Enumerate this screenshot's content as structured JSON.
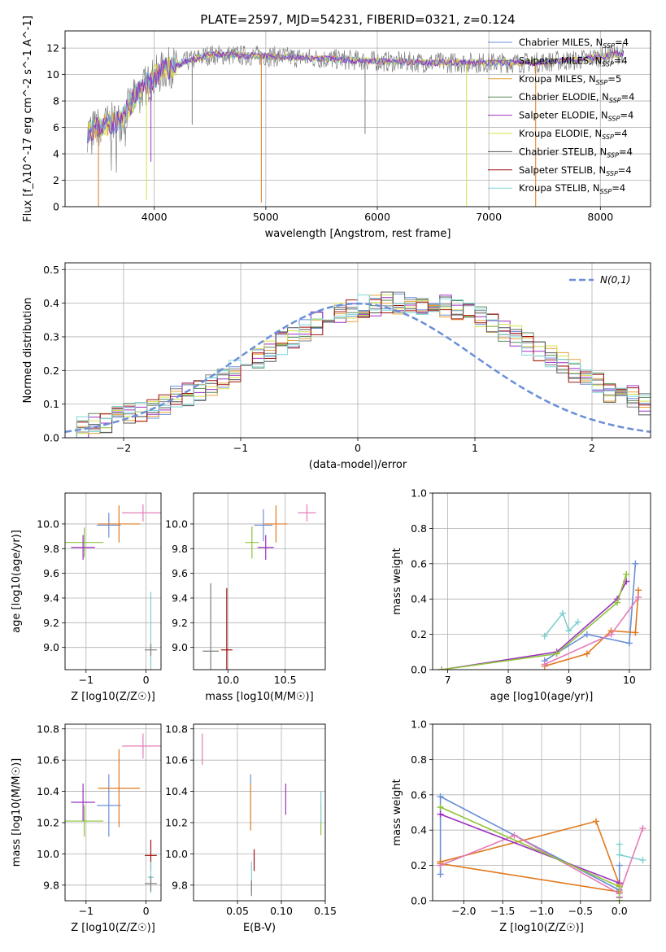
{
  "figure_title": "PLATE=2597, MJD=54231, FIBERID=0321, z=0.124",
  "colors": {
    "Chabrier MILES": "#6a8fd8",
    "Salpeter MILES": "#7f7f7f",
    "Kroupa MILES": "#e8a33a",
    "Chabrier ELODIE": "#5a8a5a",
    "Salpeter ELODIE": "#9b30c0",
    "Kroupa ELODIE": "#d6e04a",
    "Chabrier STELIB": "#555555",
    "Salpeter STELIB": "#a01010",
    "Kroupa STELIB": "#7fd6d6",
    "normal": "#6a8fd8",
    "trackA": "#e07a20",
    "trackB": "#e47bb8",
    "trackC": "#9b30c0",
    "trackD": "#8fc43a",
    "trackE": "#6a8fd8",
    "trackF": "#7fcfcf",
    "data": "#808080"
  },
  "chart_data": [
    {
      "id": "spectrum",
      "type": "line",
      "xlabel": "wavelength [Angstrom, rest frame]",
      "ylabel": "Flux [f_λ10^-17 erg cm^-2 s^-1 A^-1]",
      "xlim": [
        3200,
        8450
      ],
      "ylim": [
        0,
        13.3
      ],
      "xticks": [
        4000,
        5000,
        6000,
        7000,
        8000
      ],
      "yticks": [
        0,
        2,
        4,
        6,
        8,
        10,
        12
      ],
      "legend": [
        "Chabrier MILES, N_SSP=4",
        "Salpeter MILES, N_SSP=4",
        "Kroupa MILES, N_SSP=5",
        "Chabrier ELODIE, N_SSP=4",
        "Salpeter ELODIE, N_SSP=4",
        "Kroupa ELODIE, N_SSP=4",
        "Chabrier STELIB, N_SSP=4",
        "Salpeter STELIB, N_SSP=4",
        "Kroupa STELIB, N_SSP=4"
      ],
      "legend_position": "right",
      "continuum": [
        [
          3400,
          5.7
        ],
        [
          3600,
          6.3
        ],
        [
          3700,
          6.5
        ],
        [
          3850,
          8.6
        ],
        [
          4000,
          9.8
        ],
        [
          4100,
          10.4
        ],
        [
          4300,
          11.0
        ],
        [
          4500,
          11.5
        ],
        [
          5000,
          11.4
        ],
        [
          5500,
          11.2
        ],
        [
          6000,
          11.0
        ],
        [
          6500,
          10.9
        ],
        [
          7000,
          10.9
        ],
        [
          7400,
          10.9
        ],
        [
          7800,
          11.1
        ],
        [
          8200,
          11.6
        ]
      ],
      "absorption_dips": [
        [
          3500,
          0.0
        ],
        [
          3930,
          0.5
        ],
        [
          3970,
          3.4
        ],
        [
          4340,
          6.2
        ],
        [
          4960,
          0.3
        ],
        [
          5890,
          5.5
        ],
        [
          6800,
          0.0
        ],
        [
          7420,
          0.0
        ]
      ]
    },
    {
      "id": "residuals",
      "type": "step",
      "xlabel": "(data-model)/error",
      "ylabel": "Normed distribution",
      "xlim": [
        -2.5,
        2.5
      ],
      "ylim": [
        0,
        0.52
      ],
      "xticks": [
        -2,
        -1,
        0,
        1,
        2
      ],
      "yticks": [
        0.0,
        0.1,
        0.2,
        0.3,
        0.4,
        0.5
      ],
      "legend": [
        "N(0,1)"
      ],
      "legend_position": "top-right",
      "bin_width": 0.1,
      "base_profile": [
        0.03,
        0.03,
        0.04,
        0.05,
        0.06,
        0.07,
        0.08,
        0.09,
        0.1,
        0.12,
        0.13,
        0.14,
        0.16,
        0.18,
        0.2,
        0.22,
        0.24,
        0.26,
        0.28,
        0.3,
        0.32,
        0.34,
        0.36,
        0.37,
        0.38,
        0.39,
        0.39,
        0.4,
        0.4,
        0.4,
        0.4,
        0.39,
        0.39,
        0.38,
        0.37,
        0.36,
        0.34,
        0.32,
        0.3,
        0.28,
        0.26,
        0.24,
        0.22,
        0.2,
        0.18,
        0.16,
        0.14,
        0.13,
        0.12,
        0.1
      ],
      "series_names": [
        "Chabrier MILES",
        "Salpeter MILES",
        "Kroupa MILES",
        "Chabrier ELODIE",
        "Salpeter ELODIE",
        "Kroupa ELODIE",
        "Chabrier STELIB",
        "Salpeter STELIB",
        "Kroupa STELIB"
      ]
    },
    {
      "id": "age_vs_Z",
      "type": "scatter",
      "xlabel": "Z [log10(Z/Z☉)]",
      "ylabel": "age [log10(age/yr)]",
      "xlim": [
        -1.35,
        0.25
      ],
      "ylim": [
        8.82,
        10.25
      ],
      "xticks": [
        -1,
        0
      ],
      "yticks": [
        9.0,
        9.2,
        9.4,
        9.6,
        9.8,
        10.0
      ],
      "points": [
        {
          "x": -0.62,
          "y": 9.99,
          "xerr": 0.2,
          "yerr": 0.1,
          "color": "trackE"
        },
        {
          "x": -0.45,
          "y": 10.0,
          "xerr": 0.35,
          "yerr": 0.15,
          "color": "trackA"
        },
        {
          "x": -0.05,
          "y": 10.09,
          "xerr": 0.35,
          "yerr": 0.07,
          "color": "trackB"
        },
        {
          "x": -1.03,
          "y": 9.85,
          "xerr": 0.32,
          "yerr": 0.12,
          "color": "trackD"
        },
        {
          "x": -1.05,
          "y": 9.81,
          "xerr": 0.2,
          "yerr": 0.1,
          "color": "trackC"
        },
        {
          "x": 0.08,
          "y": 9.0,
          "xerr": 0.02,
          "yerr": 0.45,
          "color": "trackF"
        },
        {
          "x": 0.08,
          "y": 8.98,
          "xerr": 0.1,
          "yerr": 0.05,
          "color": "data"
        }
      ]
    },
    {
      "id": "age_vs_mass",
      "type": "scatter",
      "xlabel": "mass [log10(M/M☉)]",
      "ylabel": "",
      "xlim": [
        9.7,
        10.85
      ],
      "ylim": [
        8.82,
        10.25
      ],
      "xticks": [
        10.0,
        10.5
      ],
      "yticks": [
        9.0,
        9.2,
        9.4,
        9.6,
        9.8,
        10.0
      ],
      "points": [
        {
          "x": 10.31,
          "y": 9.99,
          "xerr": 0.08,
          "yerr": 0.13,
          "color": "trackE"
        },
        {
          "x": 10.42,
          "y": 10.0,
          "xerr": 0.1,
          "yerr": 0.15,
          "color": "trackA"
        },
        {
          "x": 10.69,
          "y": 10.09,
          "xerr": 0.08,
          "yerr": 0.07,
          "color": "trackB"
        },
        {
          "x": 10.21,
          "y": 9.85,
          "xerr": 0.06,
          "yerr": 0.13,
          "color": "trackD"
        },
        {
          "x": 10.33,
          "y": 9.81,
          "xerr": 0.07,
          "yerr": 0.1,
          "color": "trackC"
        },
        {
          "x": 9.85,
          "y": 8.97,
          "xerr": 0.07,
          "yerr": 0.55,
          "color": "data"
        },
        {
          "x": 9.99,
          "y": 8.98,
          "xerr": 0.05,
          "yerr": 0.5,
          "color": "Salpeter STELIB"
        }
      ]
    },
    {
      "id": "massweight_vs_age",
      "type": "line",
      "xlabel": "age [log10(age/yr)]",
      "ylabel": "mass weight",
      "xlim": [
        6.75,
        10.35
      ],
      "ylim": [
        0,
        1.0
      ],
      "xticks": [
        7,
        8,
        9,
        10
      ],
      "yticks": [
        0.0,
        0.2,
        0.4,
        0.6,
        0.8,
        1.0
      ],
      "series": [
        {
          "color": "trackF",
          "x": [
            8.6,
            8.9,
            9.0,
            9.15
          ],
          "y": [
            0.19,
            0.32,
            0.22,
            0.27
          ]
        },
        {
          "color": "trackE",
          "x": [
            8.6,
            9.3,
            10.0,
            10.1
          ],
          "y": [
            0.05,
            0.2,
            0.15,
            0.6
          ]
        },
        {
          "color": "trackA",
          "x": [
            8.6,
            9.3,
            9.7,
            10.1,
            10.15
          ],
          "y": [
            0.02,
            0.09,
            0.22,
            0.21,
            0.45
          ]
        },
        {
          "color": "trackB",
          "x": [
            8.6,
            9.7,
            10.15
          ],
          "y": [
            0.03,
            0.2,
            0.41
          ]
        },
        {
          "color": "trackC",
          "x": [
            6.9,
            8.8,
            9.8,
            9.95
          ],
          "y": [
            0.0,
            0.1,
            0.4,
            0.5
          ]
        },
        {
          "color": "trackD",
          "x": [
            6.9,
            8.8,
            9.8,
            9.95
          ],
          "y": [
            0.0,
            0.09,
            0.38,
            0.54
          ]
        }
      ]
    },
    {
      "id": "mass_vs_Z",
      "type": "scatter",
      "xlabel": "Z [log10(Z/Z☉)]",
      "ylabel": "mass [log10(M/M☉)]",
      "xlim": [
        -1.35,
        0.25
      ],
      "ylim": [
        9.7,
        10.83
      ],
      "xticks": [
        -1,
        0
      ],
      "yticks": [
        9.8,
        10.0,
        10.2,
        10.4,
        10.6,
        10.8
      ],
      "points": [
        {
          "x": -0.62,
          "y": 10.31,
          "xerr": 0.2,
          "yerr": 0.2,
          "color": "trackE"
        },
        {
          "x": -0.45,
          "y": 10.42,
          "xerr": 0.35,
          "yerr": 0.25,
          "color": "trackA"
        },
        {
          "x": -0.05,
          "y": 10.69,
          "xerr": 0.35,
          "yerr": 0.08,
          "color": "trackB"
        },
        {
          "x": -1.03,
          "y": 10.21,
          "xerr": 0.32,
          "yerr": 0.1,
          "color": "trackD"
        },
        {
          "x": -1.05,
          "y": 10.33,
          "xerr": 0.2,
          "yerr": 0.12,
          "color": "trackC"
        },
        {
          "x": 0.08,
          "y": 9.99,
          "xerr": 0.1,
          "yerr": 0.1,
          "color": "Salpeter STELIB"
        },
        {
          "x": 0.08,
          "y": 9.85,
          "xerr": 0.05,
          "yerr": 0.1,
          "color": "trackF"
        },
        {
          "x": 0.08,
          "y": 9.81,
          "xerr": 0.1,
          "yerr": 0.05,
          "color": "data"
        }
      ]
    },
    {
      "id": "mass_vs_ebv",
      "type": "scatter",
      "xlabel": "E(B-V)",
      "ylabel": "",
      "xlim": [
        0.0,
        0.15
      ],
      "ylim": [
        9.7,
        10.83
      ],
      "xticks": [
        0.05,
        0.1,
        0.15
      ],
      "yticks": [
        9.8,
        10.0,
        10.2,
        10.4,
        10.6,
        10.8
      ],
      "points": [
        {
          "x": 0.01,
          "y": 10.67,
          "yerr": 0.1,
          "color": "trackB"
        },
        {
          "x": 0.065,
          "y": 10.3,
          "yerr": 0.15,
          "color": "trackA"
        },
        {
          "x": 0.065,
          "y": 10.48,
          "yerr": 0.03,
          "color": "trackE"
        },
        {
          "x": 0.105,
          "y": 10.35,
          "yerr": 0.1,
          "color": "trackC"
        },
        {
          "x": 0.145,
          "y": 10.22,
          "yerr": 0.1,
          "color": "trackD"
        },
        {
          "x": 0.145,
          "y": 10.3,
          "yerr": 0.1,
          "color": "trackF"
        },
        {
          "x": 0.069,
          "y": 9.96,
          "yerr": 0.07,
          "color": "Salpeter STELIB"
        },
        {
          "x": 0.066,
          "y": 9.85,
          "yerr": 0.1,
          "color": "trackF"
        },
        {
          "x": 0.066,
          "y": 9.78,
          "yerr": 0.05,
          "color": "data"
        }
      ]
    },
    {
      "id": "massweight_vs_Z",
      "type": "line",
      "xlabel": "Z [log10(Z/Z☉)]",
      "ylabel": "mass weight",
      "xlim": [
        -2.4,
        0.4
      ],
      "ylim": [
        0,
        1.0
      ],
      "xticks": [
        -2.0,
        -1.5,
        -1.0,
        -0.5,
        0.0
      ],
      "yticks": [
        0.0,
        0.2,
        0.4,
        0.6,
        0.8,
        1.0
      ],
      "series": [
        {
          "color": "trackE",
          "x": [
            -2.3,
            -2.3,
            0.0,
            0.0
          ],
          "y": [
            0.15,
            0.59,
            0.06,
            0.2
          ]
        },
        {
          "color": "trackF",
          "x": [
            0.0,
            0.0,
            0.3
          ],
          "y": [
            0.32,
            0.26,
            0.23
          ]
        },
        {
          "color": "trackA",
          "x": [
            -2.3,
            -0.3,
            0.0,
            0.0,
            -2.3
          ],
          "y": [
            0.22,
            0.45,
            0.09,
            0.05,
            0.21
          ]
        },
        {
          "color": "trackB",
          "x": [
            -2.3,
            -1.35,
            0.0,
            0.3
          ],
          "y": [
            0.2,
            0.37,
            0.04,
            0.41
          ]
        },
        {
          "color": "trackC",
          "x": [
            -2.3,
            0.0,
            0.0
          ],
          "y": [
            0.49,
            0.1,
            0.02
          ]
        },
        {
          "color": "trackD",
          "x": [
            -2.3,
            0.0,
            0.0
          ],
          "y": [
            0.53,
            0.08,
            0.0
          ]
        }
      ]
    }
  ]
}
